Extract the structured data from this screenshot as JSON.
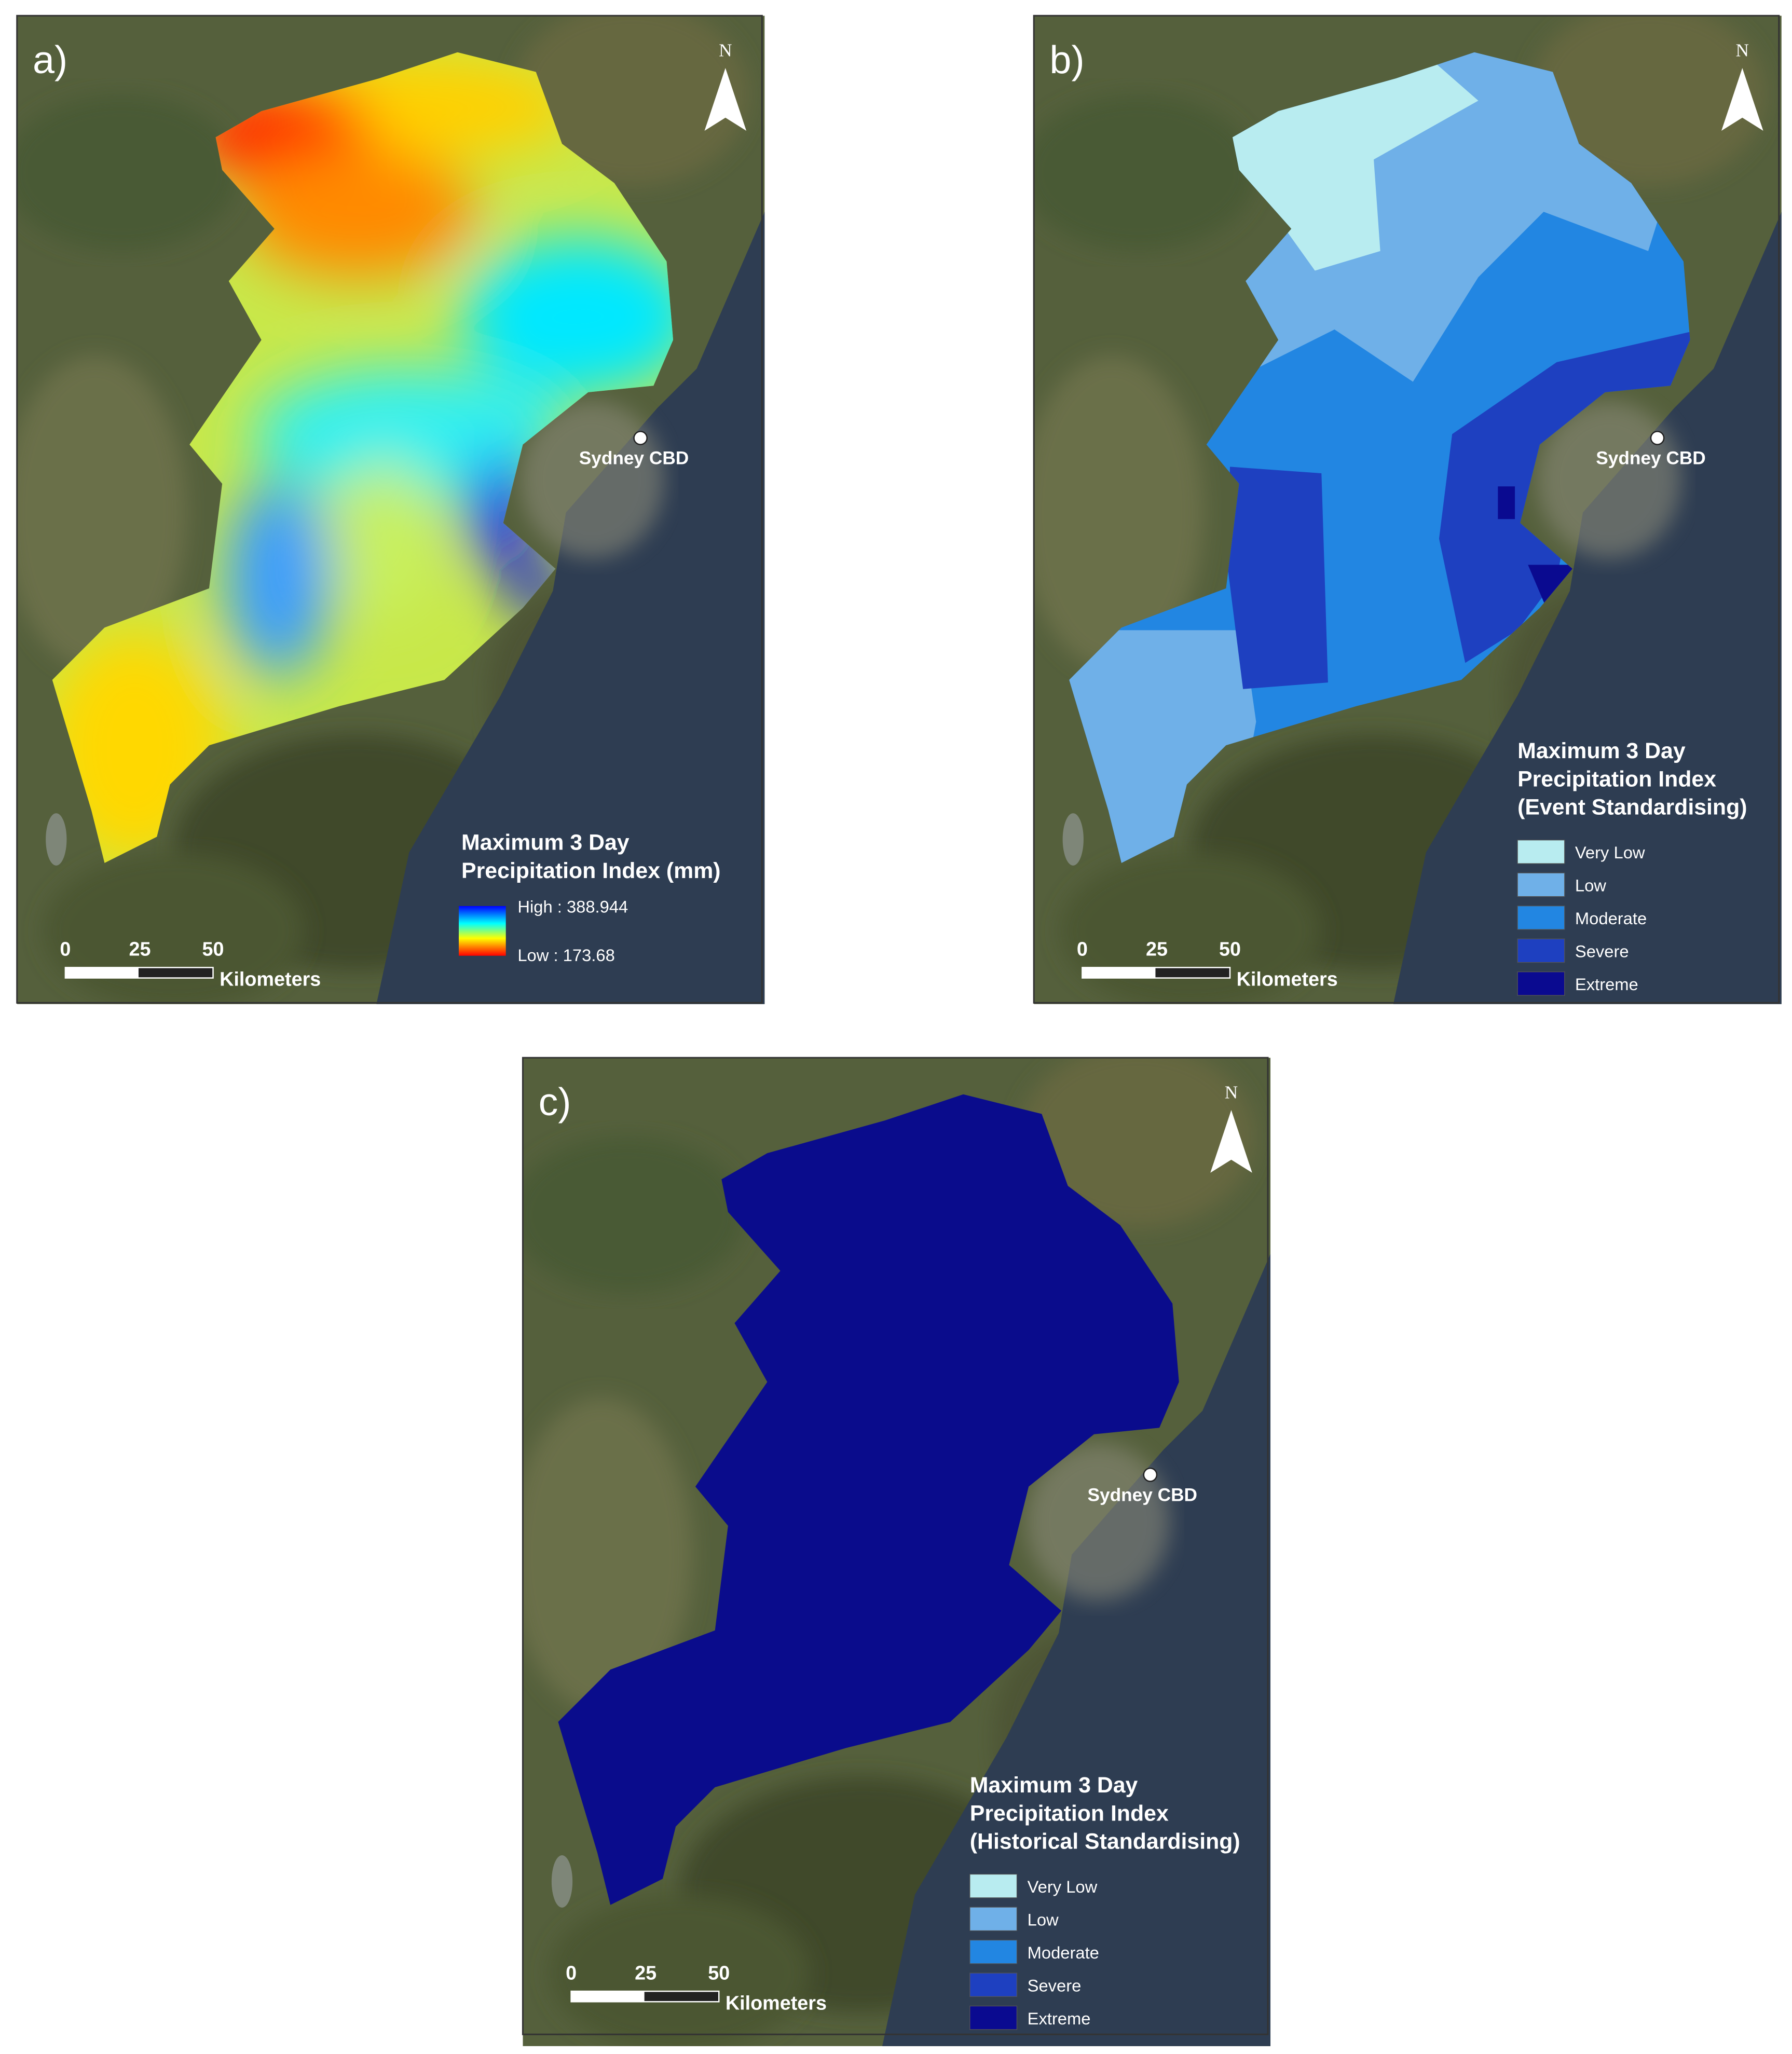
{
  "panels": [
    {
      "label": "a)",
      "north": "N",
      "city": "Sydney CBD",
      "legend": {
        "title": [
          "Maximum 3 Day",
          "Precipitation Index (mm)"
        ],
        "high": "High : 388.944",
        "low": "Low : 173.68"
      },
      "scale": {
        "ticks": [
          "0",
          "25",
          "50"
        ],
        "unit": "Kilometers"
      }
    },
    {
      "label": "b)",
      "north": "N",
      "city": "Sydney CBD",
      "legend": {
        "title": [
          "Maximum 3 Day",
          "Precipitation Index",
          "(Event Standardising)"
        ],
        "items": [
          "Very Low",
          "Low",
          "Moderate",
          "Severe",
          "Extreme"
        ]
      },
      "scale": {
        "ticks": [
          "0",
          "25",
          "50"
        ],
        "unit": "Kilometers"
      }
    },
    {
      "label": "c)",
      "north": "N",
      "city": "Sydney CBD",
      "legend": {
        "title": [
          "Maximum 3 Day",
          "Precipitation Index",
          "(Historical Standardising)"
        ],
        "items": [
          "Very Low",
          "Low",
          "Moderate",
          "Severe",
          "Extreme"
        ]
      },
      "scale": {
        "ticks": [
          "0",
          "25",
          "50"
        ],
        "unit": "Kilometers"
      }
    }
  ]
}
